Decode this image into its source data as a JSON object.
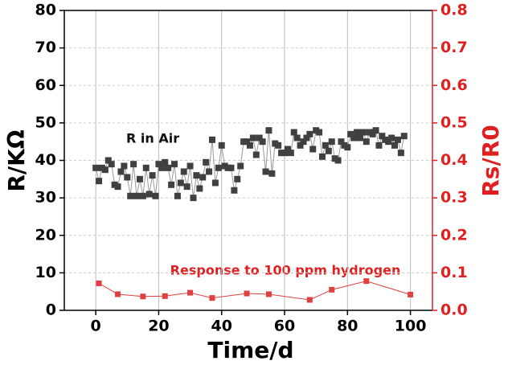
{
  "chart_data": {
    "type": "scatter-line",
    "x_label": "Time/d",
    "y_label": "R/KΩ",
    "y2_label": "Rs/R0",
    "annotations": [
      "R in Air",
      "Response to 100 ppm hydrogen"
    ],
    "xlim": [
      -10,
      107
    ],
    "xticks": [
      0,
      20,
      40,
      60,
      80,
      100
    ],
    "ylim": [
      0,
      80
    ],
    "yticks": [
      0,
      10,
      20,
      30,
      40,
      50,
      60,
      70,
      80
    ],
    "y2lim": [
      0,
      0.8
    ],
    "y2ticks": [
      {
        "value": 0,
        "label": "0.0"
      },
      0.1,
      0.2,
      0.3,
      0.4,
      0.5,
      0.6,
      0.7,
      0.8
    ],
    "grid": true,
    "y2_color": "#e02020",
    "series": [
      {
        "name": "R in Air",
        "color": "#404040",
        "x": [
          0,
          1,
          2,
          3,
          4,
          5,
          6,
          7,
          8,
          9,
          10,
          11,
          12,
          13,
          14,
          15,
          16,
          17,
          18,
          19,
          20,
          21,
          22,
          23,
          24,
          25,
          26,
          27,
          28,
          29,
          30,
          31,
          32,
          33,
          34,
          35,
          36,
          37,
          38,
          39,
          40,
          41,
          42,
          43,
          44,
          45,
          46,
          47,
          48,
          49,
          50,
          51,
          52,
          53,
          54,
          55,
          56,
          57,
          58,
          59,
          60,
          61,
          62,
          63,
          64,
          65,
          66,
          67,
          68,
          69,
          70,
          71,
          72,
          73,
          74,
          75,
          76,
          77,
          78,
          79,
          80,
          81,
          82,
          83,
          84,
          85,
          86,
          87,
          88,
          89,
          90,
          91,
          92,
          93,
          94,
          95,
          96,
          97,
          98
        ],
        "values": [
          38,
          34.5,
          38,
          37.5,
          40,
          39,
          33.5,
          33,
          37,
          38.5,
          35.5,
          30.5,
          39,
          30.5,
          35,
          30.5,
          38,
          31,
          36,
          30.5,
          39,
          38,
          39.5,
          38,
          33.5,
          39,
          30.5,
          34,
          37,
          33,
          38.5,
          30,
          36,
          32.5,
          35.5,
          39.5,
          37,
          45.5,
          34,
          38,
          44,
          38.5,
          38,
          38,
          32,
          35,
          38.5,
          45,
          45,
          44,
          46,
          41.5,
          46,
          45,
          37,
          48,
          36.5,
          44.5,
          44,
          42,
          42,
          43,
          42,
          47.5,
          46,
          44,
          45,
          46,
          47,
          43,
          48,
          47.5,
          41,
          44,
          42.5,
          45,
          40.5,
          40,
          45,
          44,
          43.5,
          47,
          46,
          47.5,
          46,
          47.5,
          45,
          47.5,
          47,
          48,
          44,
          46.5,
          45.5,
          45,
          46,
          44,
          45.5,
          42,
          46.5
        ]
      },
      {
        "name": "Response to 100 ppm hydrogen",
        "color": "#e04040",
        "axis": "y2",
        "x": [
          1,
          7,
          15,
          22,
          30,
          37,
          48,
          55,
          68,
          75,
          86,
          100
        ],
        "values": [
          0.072,
          0.043,
          0.037,
          0.038,
          0.047,
          0.033,
          0.045,
          0.043,
          0.028,
          0.055,
          0.078,
          0.042
        ]
      }
    ]
  }
}
